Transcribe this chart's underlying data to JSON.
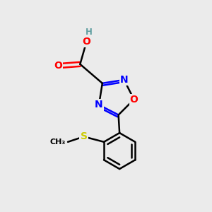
{
  "bg_color": "#ebebeb",
  "atom_colors": {
    "C": "#000000",
    "N": "#0000ff",
    "O": "#ff0000",
    "S": "#cccc00",
    "H": "#5f9ea0"
  },
  "bond_width": 1.8,
  "figsize": [
    3.0,
    3.0
  ],
  "dpi": 100
}
